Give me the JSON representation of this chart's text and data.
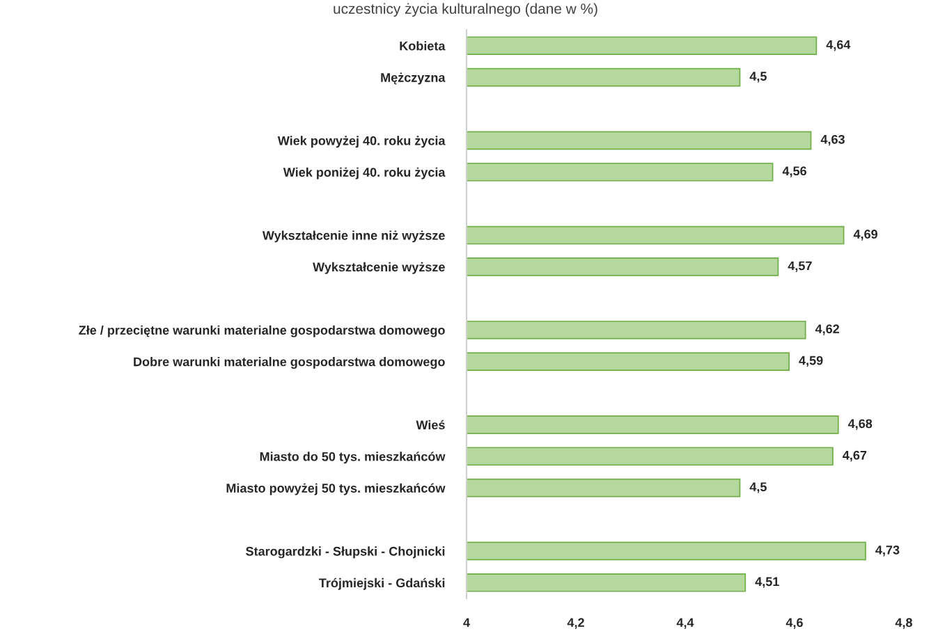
{
  "chart_data": {
    "type": "bar",
    "orientation": "horizontal",
    "title": "uczestnicy życia kulturalnego (dane w %)",
    "categories": [
      "Kobieta",
      "Mężczyzna",
      null,
      "Wiek powyżej 40. roku życia",
      "Wiek poniżej 40. roku życia",
      null,
      "Wykształcenie inne niż wyższe",
      "Wykształcenie wyższe",
      null,
      "Złe / przeciętne warunki materialne gospodarstwa domowego",
      "Dobre warunki materialne gospodarstwa domowego",
      null,
      "Wieś",
      "Miasto do 50 tys. mieszkańców",
      "Miasto powyżej 50 tys. mieszkańców",
      null,
      "Starogardzki - Słupski - Chojnicki",
      "Trójmiejski - Gdański"
    ],
    "values": [
      4.64,
      4.5,
      null,
      4.63,
      4.56,
      null,
      4.69,
      4.57,
      null,
      4.62,
      4.59,
      null,
      4.68,
      4.67,
      4.5,
      null,
      4.73,
      4.51
    ],
    "value_labels": [
      "4,64",
      "4,5",
      null,
      "4,63",
      "4,56",
      null,
      "4,69",
      "4,57",
      null,
      "4,62",
      "4,59",
      null,
      "4,68",
      "4,67",
      "4,5",
      null,
      "4,73",
      "4,51"
    ],
    "color": "#b4d89e",
    "xlim": [
      4,
      4.8
    ],
    "xticks": [
      4,
      {
        "value": 4.2,
        "label": "4,2"
      },
      {
        "value": 4.4,
        "label": "4,4"
      },
      {
        "value": 4.6,
        "label": "4,6"
      },
      {
        "value": 4.8,
        "label": "4,8"
      }
    ],
    "grid": false
  }
}
